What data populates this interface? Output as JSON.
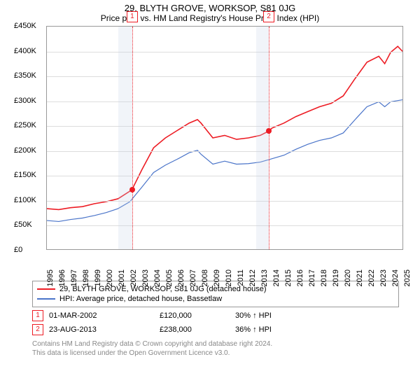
{
  "title": "29, BLYTH GROVE, WORKSOP, S81 0JG",
  "subtitle": "Price paid vs. HM Land Registry's House Price Index (HPI)",
  "chart": {
    "type": "line",
    "x_years": [
      1995,
      1996,
      1997,
      1998,
      1999,
      2000,
      2001,
      2002,
      2003,
      2004,
      2005,
      2006,
      2007,
      2008,
      2009,
      2010,
      2011,
      2012,
      2013,
      2014,
      2015,
      2016,
      2017,
      2018,
      2019,
      2020,
      2021,
      2022,
      2023,
      2024,
      2025
    ],
    "xlim": [
      1995,
      2025
    ],
    "ylim": [
      0,
      450000
    ],
    "ytick_step": 50000,
    "ytick_labels": [
      "£0",
      "£50K",
      "£100K",
      "£150K",
      "£200K",
      "£250K",
      "£300K",
      "£350K",
      "£400K",
      "£450K"
    ],
    "ytick_values": [
      0,
      50000,
      100000,
      150000,
      200000,
      250000,
      300000,
      350000,
      400000,
      450000
    ],
    "grid_color": "#dddddd",
    "axis_color": "#999999",
    "background_color": "#ffffff",
    "shade_color": "rgba(200,210,230,0.25)",
    "sale_vline_color": "#ed1c24",
    "shades": [
      {
        "from": 2001.0,
        "to": 2002.17
      },
      {
        "from": 2012.6,
        "to": 2013.65
      }
    ],
    "sale_markers": [
      {
        "num": "1",
        "x": 2002.17,
        "y": 120000
      },
      {
        "num": "2",
        "x": 2013.65,
        "y": 238000
      }
    ],
    "series": [
      {
        "name": "property",
        "label": "29, BLYTH GROVE, WORKSOP, S81 0JG (detached house)",
        "color": "#ed1c24",
        "width": 1.6,
        "points": [
          [
            1995,
            82000
          ],
          [
            1996,
            80000
          ],
          [
            1997,
            84000
          ],
          [
            1998,
            86000
          ],
          [
            1999,
            92000
          ],
          [
            2000,
            96000
          ],
          [
            2001,
            102000
          ],
          [
            2002.17,
            120000
          ],
          [
            2003,
            160000
          ],
          [
            2004,
            205000
          ],
          [
            2005,
            225000
          ],
          [
            2006,
            240000
          ],
          [
            2007,
            255000
          ],
          [
            2007.7,
            262000
          ],
          [
            2008,
            255000
          ],
          [
            2009,
            225000
          ],
          [
            2010,
            230000
          ],
          [
            2011,
            222000
          ],
          [
            2012,
            225000
          ],
          [
            2013,
            230000
          ],
          [
            2013.65,
            238000
          ],
          [
            2014,
            245000
          ],
          [
            2015,
            255000
          ],
          [
            2016,
            268000
          ],
          [
            2017,
            278000
          ],
          [
            2018,
            288000
          ],
          [
            2019,
            295000
          ],
          [
            2020,
            310000
          ],
          [
            2021,
            345000
          ],
          [
            2022,
            378000
          ],
          [
            2023,
            390000
          ],
          [
            2023.5,
            375000
          ],
          [
            2024,
            398000
          ],
          [
            2024.6,
            410000
          ],
          [
            2025,
            400000
          ]
        ]
      },
      {
        "name": "hpi",
        "label": "HPI: Average price, detached house, Bassetlaw",
        "color": "#4a74c9",
        "width": 1.2,
        "points": [
          [
            1995,
            58000
          ],
          [
            1996,
            56000
          ],
          [
            1997,
            60000
          ],
          [
            1998,
            63000
          ],
          [
            1999,
            68000
          ],
          [
            2000,
            74000
          ],
          [
            2001,
            82000
          ],
          [
            2002,
            96000
          ],
          [
            2003,
            125000
          ],
          [
            2004,
            155000
          ],
          [
            2005,
            170000
          ],
          [
            2006,
            182000
          ],
          [
            2007,
            195000
          ],
          [
            2007.7,
            200000
          ],
          [
            2008,
            192000
          ],
          [
            2009,
            172000
          ],
          [
            2010,
            178000
          ],
          [
            2011,
            172000
          ],
          [
            2012,
            173000
          ],
          [
            2013,
            176000
          ],
          [
            2014,
            183000
          ],
          [
            2015,
            190000
          ],
          [
            2016,
            202000
          ],
          [
            2017,
            212000
          ],
          [
            2018,
            220000
          ],
          [
            2019,
            225000
          ],
          [
            2020,
            235000
          ],
          [
            2021,
            262000
          ],
          [
            2022,
            288000
          ],
          [
            2023,
            298000
          ],
          [
            2023.5,
            288000
          ],
          [
            2024,
            298000
          ],
          [
            2025,
            302000
          ]
        ]
      }
    ]
  },
  "legend": {
    "rows": [
      {
        "color": "#ed1c24",
        "label": "29, BLYTH GROVE, WORKSOP, S81 0JG (detached house)"
      },
      {
        "color": "#4a74c9",
        "label": "HPI: Average price, detached house, Bassetlaw"
      }
    ]
  },
  "sales": [
    {
      "num": "1",
      "date": "01-MAR-2002",
      "price": "£120,000",
      "pct": "30% ↑ HPI"
    },
    {
      "num": "2",
      "date": "23-AUG-2013",
      "price": "£238,000",
      "pct": "36% ↑ HPI"
    }
  ],
  "attribution_line1": "Contains HM Land Registry data © Crown copyright and database right 2024.",
  "attribution_line2": "This data is licensed under the Open Government Licence v3.0."
}
